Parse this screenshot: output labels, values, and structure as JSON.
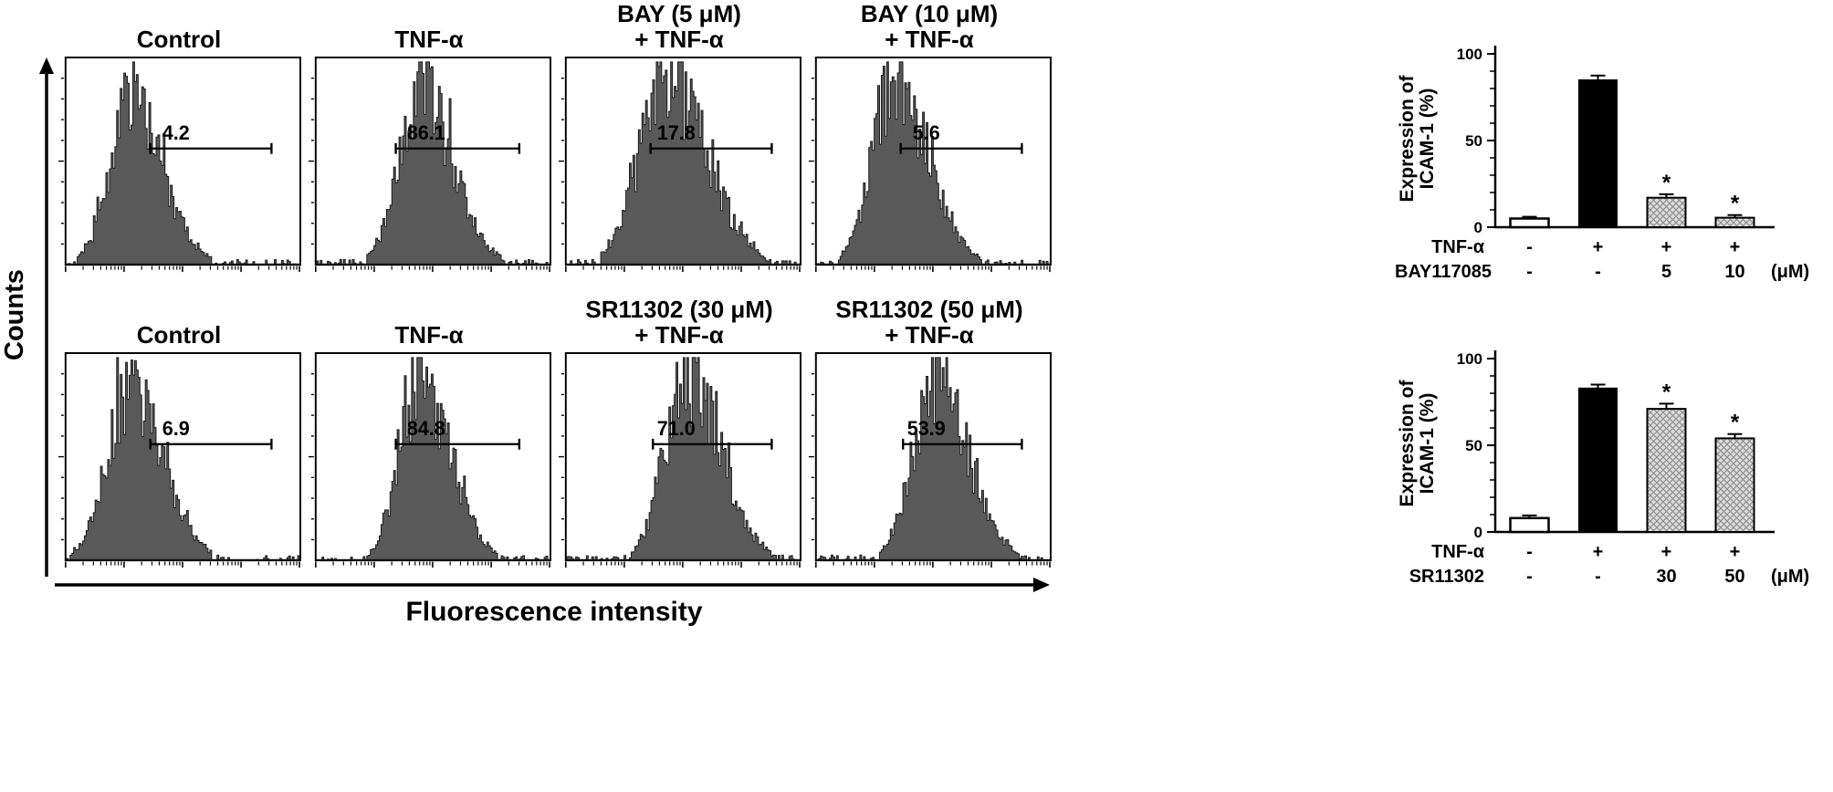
{
  "chart_data": [
    {
      "type": "histogram",
      "xlabel": "Fluorescence intensity",
      "ylabel": "Counts",
      "panels": [
        {
          "title": "Control",
          "title_lines": [
            "Control"
          ],
          "gate_percent": 4.2,
          "gate_label": "4.2",
          "peak_frac": 0.27,
          "spread_frac": 0.105,
          "height_frac": 0.8,
          "gate_span": [
            0.36,
            0.88
          ]
        },
        {
          "title": "TNF-α",
          "title_lines": [
            "TNF-α"
          ],
          "gate_percent": 86.1,
          "gate_label": "86.1",
          "peak_frac": 0.44,
          "spread_frac": 0.105,
          "height_frac": 0.92,
          "gate_span": [
            0.34,
            0.87
          ]
        },
        {
          "title": "BAY (5 μM) + TNF-α",
          "title_lines": [
            "BAY (5 μM)",
            "+ TNF-α"
          ],
          "gate_percent": 17.8,
          "gate_label": "17.8",
          "peak_frac": 0.42,
          "spread_frac": 0.13,
          "height_frac": 0.96,
          "gate_span": [
            0.36,
            0.88
          ]
        },
        {
          "title": "BAY (10 μM) + TNF-α",
          "title_lines": [
            "BAY (10 μM)",
            "+ TNF-α"
          ],
          "gate_percent": 5.6,
          "gate_label": "5.6",
          "peak_frac": 0.33,
          "spread_frac": 0.11,
          "height_frac": 0.94,
          "gate_span": [
            0.36,
            0.88
          ]
        },
        {
          "title": "Control",
          "title_lines": [
            "Control"
          ],
          "gate_percent": 6.9,
          "gate_label": "6.9",
          "peak_frac": 0.26,
          "spread_frac": 0.11,
          "height_frac": 0.86,
          "gate_span": [
            0.36,
            0.88
          ]
        },
        {
          "title": "TNF-α",
          "title_lines": [
            "TNF-α"
          ],
          "gate_percent": 84.8,
          "gate_label": "84.8",
          "peak_frac": 0.44,
          "spread_frac": 0.1,
          "height_frac": 0.9,
          "gate_span": [
            0.34,
            0.87
          ]
        },
        {
          "title": "SR11302 (30 μM) + TNF-α",
          "title_lines": [
            "SR11302 (30 μM)",
            "+ TNF-α"
          ],
          "gate_percent": 71.0,
          "gate_label": "71.0",
          "peak_frac": 0.51,
          "spread_frac": 0.11,
          "height_frac": 0.93,
          "gate_span": [
            0.37,
            0.88
          ]
        },
        {
          "title": "SR11302 (50 μM) + TNF-α",
          "title_lines": [
            "SR11302 (50 μM)",
            "+ TNF-α"
          ],
          "gate_percent": 53.9,
          "gate_label": "53.9",
          "peak_frac": 0.5,
          "spread_frac": 0.11,
          "height_frac": 0.89,
          "gate_span": [
            0.37,
            0.88
          ]
        }
      ]
    },
    {
      "type": "bar",
      "ylabel": "Expression of ICAM-1 (%)",
      "ylabel_lines": [
        "Expression of",
        "ICAM-1 (%)"
      ],
      "ylim": [
        0,
        100
      ],
      "yticks": [
        0,
        50,
        100
      ],
      "values": [
        5,
        85,
        17,
        5.5
      ],
      "errors": [
        1,
        2.5,
        2,
        1.5
      ],
      "significance": [
        "",
        "",
        "*",
        "*"
      ],
      "bar_styles": [
        "white",
        "black",
        "hatch",
        "hatch"
      ],
      "x_rows": [
        {
          "label": "TNF-α",
          "values": [
            "-",
            "+",
            "+",
            "+"
          ],
          "unit": ""
        },
        {
          "label": "BAY117085",
          "values": [
            "-",
            "-",
            "5",
            "10"
          ],
          "unit": "(μM)"
        }
      ]
    },
    {
      "type": "bar",
      "ylabel": "Expression of ICAM-1 (%)",
      "ylabel_lines": [
        "Expression of",
        "ICAM-1 (%)"
      ],
      "ylim": [
        0,
        100
      ],
      "yticks": [
        0,
        50,
        100
      ],
      "values": [
        8,
        83,
        71,
        54
      ],
      "errors": [
        1.5,
        2,
        3,
        2.5
      ],
      "significance": [
        "",
        "",
        "*",
        "*"
      ],
      "bar_styles": [
        "white",
        "black",
        "hatch",
        "hatch"
      ],
      "x_rows": [
        {
          "label": "TNF-α",
          "values": [
            "-",
            "+",
            "+",
            "+"
          ],
          "unit": ""
        },
        {
          "label": "SR11302",
          "values": [
            "-",
            "-",
            "30",
            "50"
          ],
          "unit": "(μM)"
        }
      ]
    }
  ]
}
